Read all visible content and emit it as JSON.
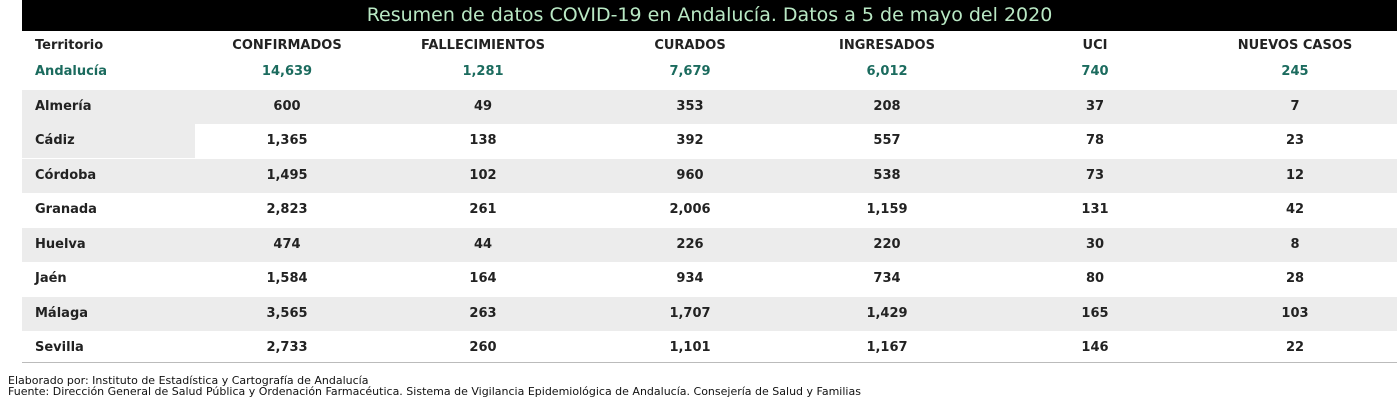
{
  "header": {
    "title": "Resumen de datos COVID-19 en Andalucía. Datos a 5 de mayo del 2020"
  },
  "table": {
    "columns": [
      "Territorio",
      "CONFIRMADOS",
      "FALLECIMIENTOS",
      "CURADOS",
      "INGRESADOS",
      "UCI",
      "NUEVOS CASOS"
    ],
    "rows": [
      [
        "Andalucía",
        "14,639",
        "1,281",
        "7,679",
        "6,012",
        "740",
        "245"
      ],
      [
        "Almería",
        "600",
        "49",
        "353",
        "208",
        "37",
        "7"
      ],
      [
        "Cádiz",
        "1,365",
        "138",
        "392",
        "557",
        "78",
        "23"
      ],
      [
        "Córdoba",
        "1,495",
        "102",
        "960",
        "538",
        "73",
        "12"
      ],
      [
        "Granada",
        "2,823",
        "261",
        "2,006",
        "1,159",
        "131",
        "42"
      ],
      [
        "Huelva",
        "474",
        "44",
        "226",
        "220",
        "30",
        "8"
      ],
      [
        "Jaén",
        "1,584",
        "164",
        "934",
        "734",
        "80",
        "28"
      ],
      [
        "Málaga",
        "3,565",
        "263",
        "1,707",
        "1,429",
        "165",
        "103"
      ],
      [
        "Sevilla",
        "2,733",
        "260",
        "1,101",
        "1,167",
        "146",
        "22"
      ]
    ]
  },
  "footer": {
    "lines": [
      "Elaborado por: Instituto de Estadística y Cartografía de Andalucía",
      "Fuente: Dirección General de Salud Pública y Ordenación Farmacéutica. Sistema de Vigilancia Epidemiológica de Andalucía. Consejería de Salud y Familias"
    ]
  }
}
